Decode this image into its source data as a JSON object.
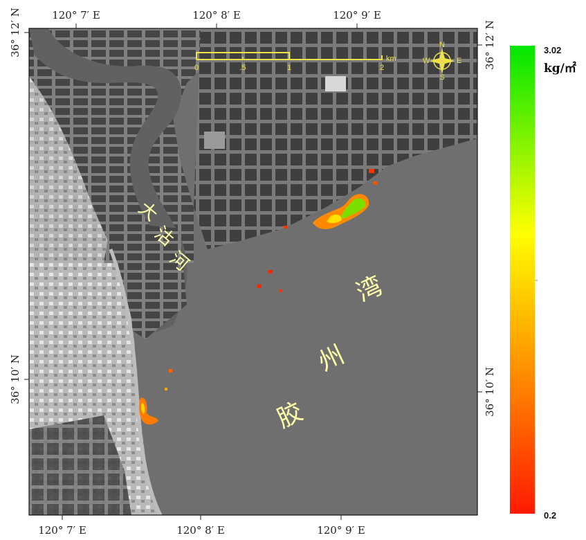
{
  "map": {
    "top_ticks": [
      "120° 7′ E",
      "120° 8′ E",
      "120° 9′ E"
    ],
    "bottom_ticks": [
      "120° 7′ E",
      "120° 8′ E",
      "120° 9′ E"
    ],
    "left_ticks": [
      "36° 12′ N",
      "36° 10′ N"
    ],
    "right_ticks": [
      "36° 12′ N",
      "36° 10′ N"
    ],
    "place_names": {
      "river": [
        "大",
        "沽",
        "河"
      ],
      "bay": [
        "胶",
        "州",
        "湾"
      ]
    },
    "scale_bar": {
      "labels": [
        "0",
        ".5",
        "1",
        "2"
      ],
      "unit": "km"
    },
    "compass": {
      "n": "N",
      "s": "S",
      "e": "E",
      "w": "W"
    }
  },
  "legend": {
    "max_label": "3.02",
    "min_label": "0.2",
    "unit": "kg/㎡",
    "colors": [
      "#ff1a00",
      "#ffa000",
      "#ffff00",
      "#00e600"
    ]
  }
}
